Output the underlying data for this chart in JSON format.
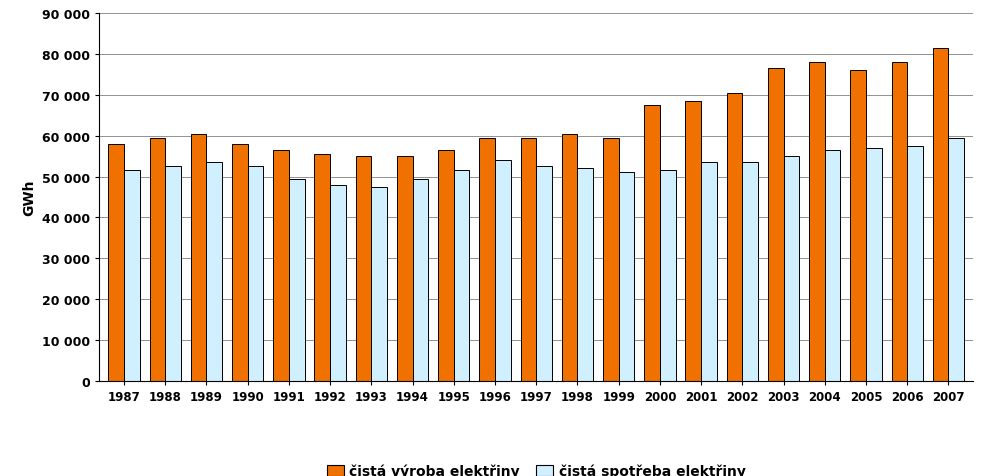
{
  "years": [
    1987,
    1988,
    1989,
    1990,
    1991,
    1992,
    1993,
    1994,
    1995,
    1996,
    1997,
    1998,
    1999,
    2000,
    2001,
    2002,
    2003,
    2004,
    2005,
    2006,
    2007
  ],
  "vyroba": [
    58000,
    59500,
    60500,
    58000,
    56500,
    55500,
    55000,
    55000,
    56500,
    59500,
    59500,
    60500,
    59500,
    67500,
    68500,
    70500,
    76500,
    78000,
    76000,
    78000,
    81500
  ],
  "spotreba": [
    51500,
    52500,
    53500,
    52500,
    49500,
    48000,
    47500,
    49500,
    51500,
    54000,
    52500,
    52000,
    51000,
    51500,
    53500,
    53500,
    55000,
    56500,
    57000,
    57500,
    59500
  ],
  "vyroba_color": "#F07000",
  "spotreba_color": "#D0F0FF",
  "bar_edge_color": "#000000",
  "background_color": "#FFFFFF",
  "ylabel": "GWh",
  "ylim": [
    0,
    90000
  ],
  "yticks": [
    0,
    10000,
    20000,
    30000,
    40000,
    50000,
    60000,
    70000,
    80000,
    90000
  ],
  "ytick_labels": [
    "0",
    "10 000",
    "20 000",
    "30 000",
    "40 000",
    "50 000",
    "60 000",
    "70 000",
    "80 000",
    "90 000"
  ],
  "legend_label_vyroba": "čistá výroba elektřiny",
  "legend_label_spotreba": "čistá spotřeba elektřiny",
  "grid_color": "#808080",
  "bar_width": 0.38,
  "group_width": 0.85,
  "figsize": [
    9.93,
    4.77
  ],
  "dpi": 100
}
